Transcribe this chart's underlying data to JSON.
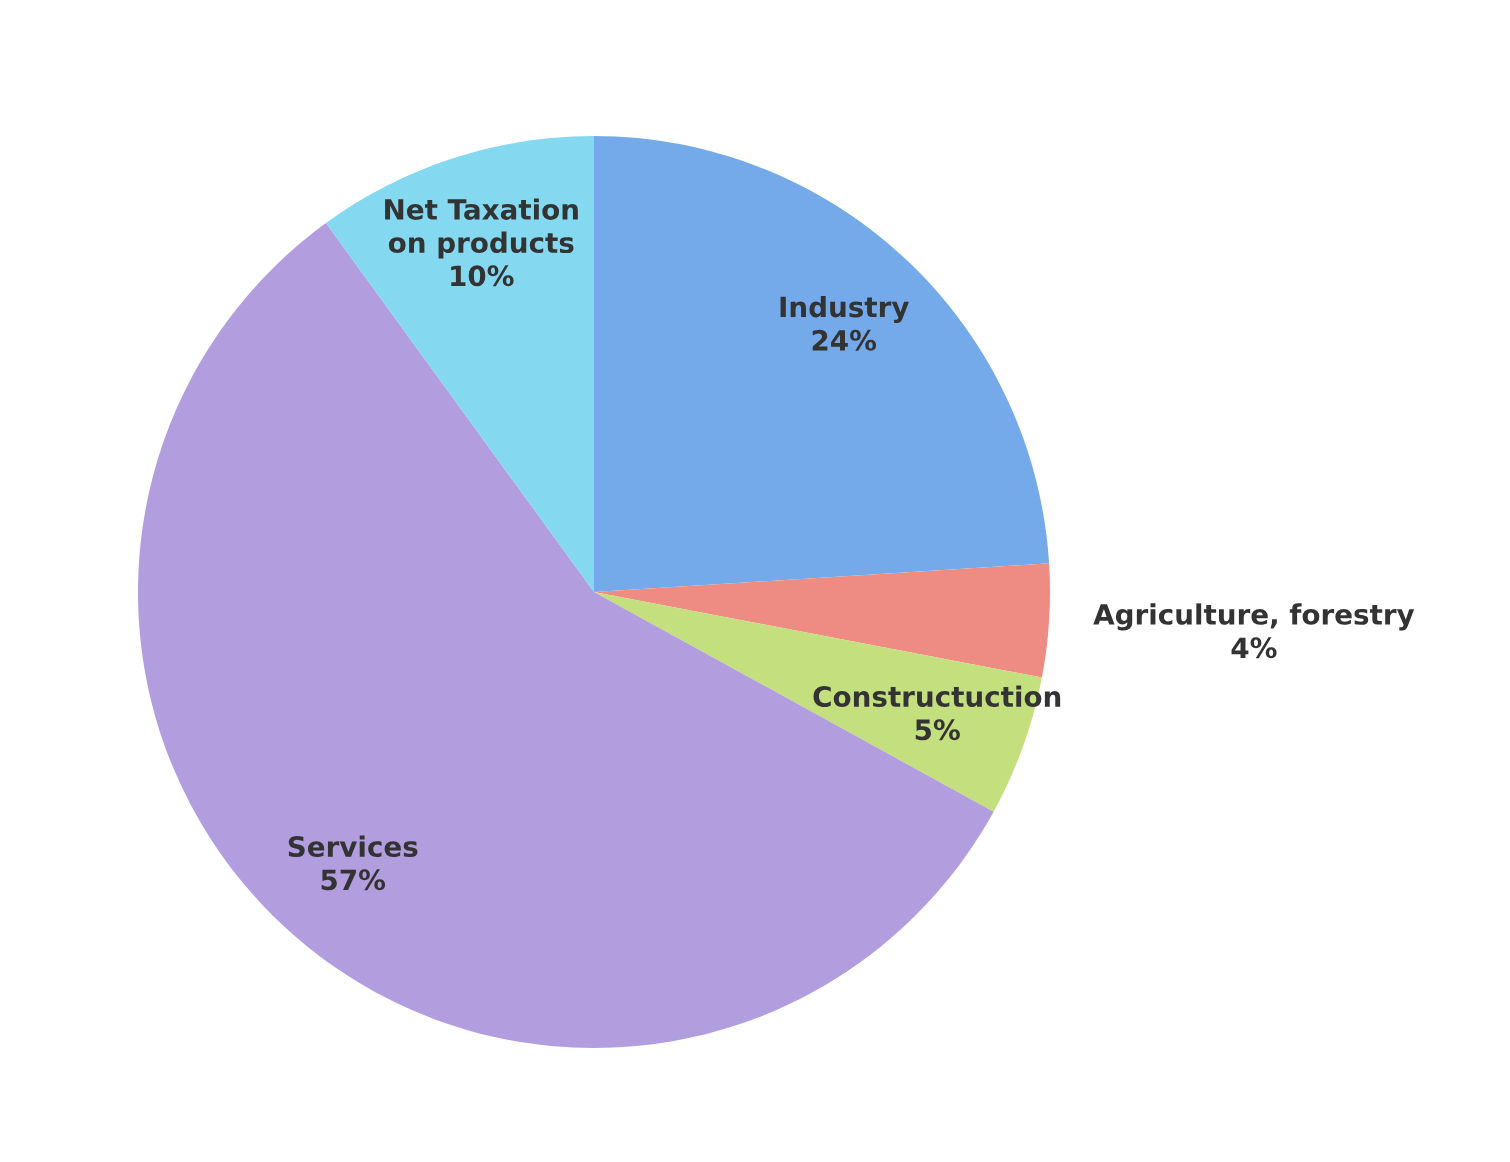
{
  "chart_data": {
    "type": "pie",
    "categories": [
      "Industry",
      "Agriculture, forestry",
      "Constructuction",
      "Services",
      "Net Taxation\non products"
    ],
    "values": [
      24,
      4,
      5,
      57,
      10
    ],
    "colors": [
      "#74aaea",
      "#ee8c84",
      "#c4e07e",
      "#b29ddf",
      "#84d8f0"
    ],
    "value_labels": [
      "24%",
      "4%",
      "5%",
      "57%",
      "10%"
    ]
  }
}
